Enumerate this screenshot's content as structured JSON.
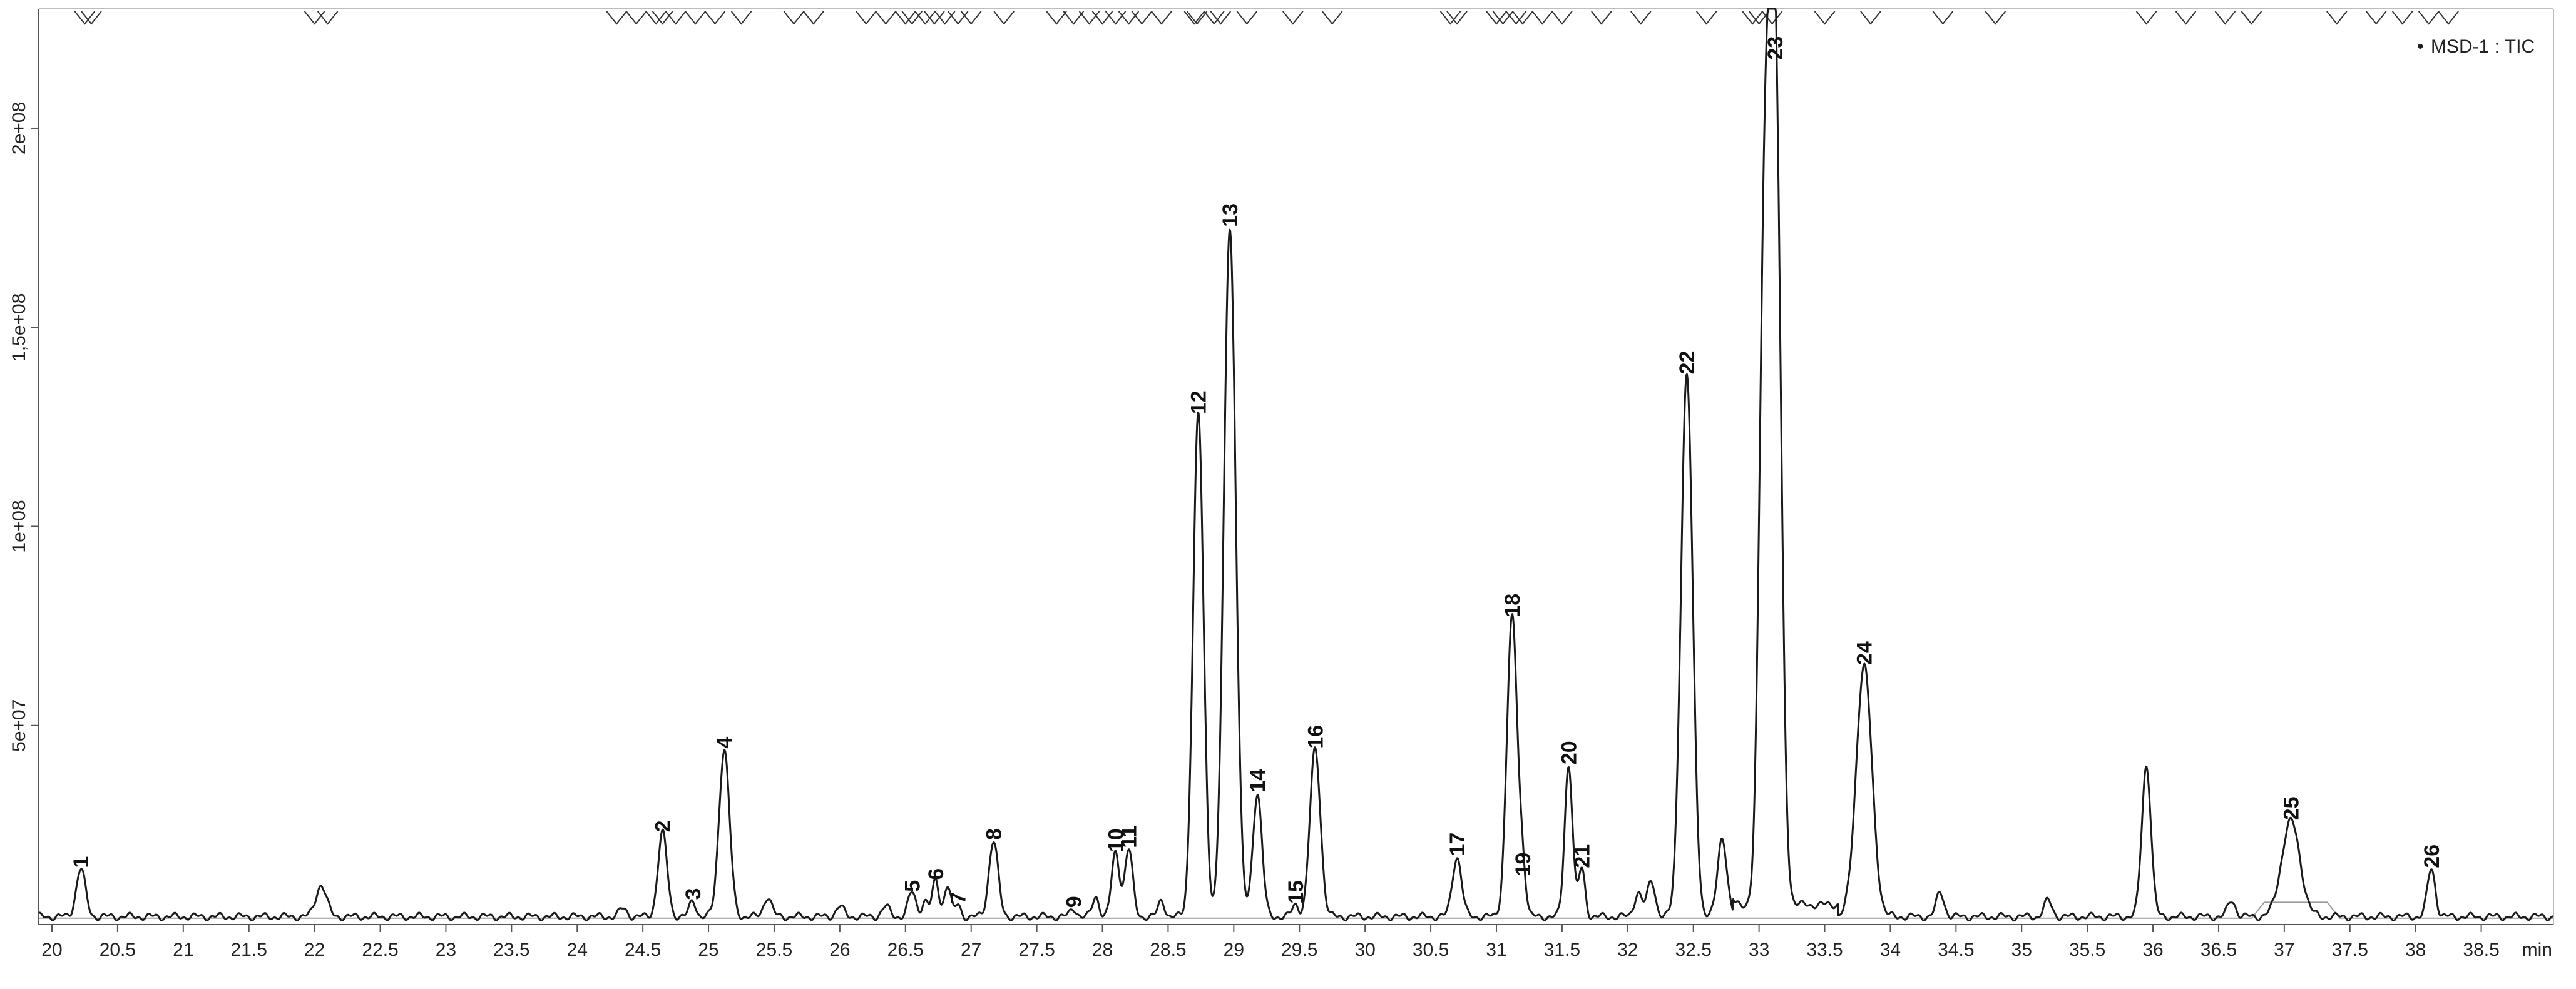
{
  "chart_data": {
    "type": "line",
    "title": "",
    "xlabel": "",
    "ylabel": "",
    "x_unit_label": "min",
    "xlim": [
      19.9,
      39.05
    ],
    "ylim": [
      0,
      230000000
    ],
    "x_ticks": [
      "20",
      "20.5",
      "21",
      "21.5",
      "22",
      "22.5",
      "23",
      "23.5",
      "24",
      "24.5",
      "25",
      "25.5",
      "26",
      "26.5",
      "27",
      "27.5",
      "28",
      "28.5",
      "29",
      "29.5",
      "30",
      "30.5",
      "31",
      "31.5",
      "32",
      "32.5",
      "33",
      "33.5",
      "34",
      "34.5",
      "35",
      "35.5",
      "36",
      "36.5",
      "37",
      "37.5",
      "38",
      "38.5"
    ],
    "y_ticks": [
      {
        "value": 50000000,
        "label": "5e+07"
      },
      {
        "value": 100000000,
        "label": "1e+08"
      },
      {
        "value": 150000000,
        "label": "1,5e+08"
      },
      {
        "value": 200000000,
        "label": "2e+08"
      }
    ],
    "legend": {
      "label": "MSD-1 : TIC",
      "placement": "top-right",
      "marker": "•"
    },
    "grid": false,
    "colors": {
      "trace": "#1a1a1a",
      "baseline": "#9a9a9a",
      "axis": "#555555"
    },
    "baseline_value": 2000000,
    "peaks": [
      {
        "label": "1",
        "x": 20.22,
        "y": 12000000,
        "w": 0.035
      },
      {
        "label": "",
        "x": 22.05,
        "y": 8000000,
        "w": 0.04
      },
      {
        "label": "",
        "x": 24.35,
        "y": 2000000,
        "w": 0.03
      },
      {
        "label": "2",
        "x": 24.65,
        "y": 21000000,
        "w": 0.035
      },
      {
        "label": "3",
        "x": 24.88,
        "y": 4000000,
        "w": 0.025
      },
      {
        "label": "4",
        "x": 25.12,
        "y": 42000000,
        "w": 0.04
      },
      {
        "label": "",
        "x": 25.45,
        "y": 5000000,
        "w": 0.03
      },
      {
        "label": "",
        "x": 26.0,
        "y": 2500000,
        "w": 0.03
      },
      {
        "label": "",
        "x": 26.35,
        "y": 2500000,
        "w": 0.03
      },
      {
        "label": "5",
        "x": 26.55,
        "y": 6000000,
        "w": 0.03
      },
      {
        "label": "",
        "x": 26.65,
        "y": 4000000,
        "w": 0.025
      },
      {
        "label": "6",
        "x": 26.73,
        "y": 9000000,
        "w": 0.025
      },
      {
        "label": "",
        "x": 26.82,
        "y": 8000000,
        "w": 0.025
      },
      {
        "label": "7",
        "x": 26.9,
        "y": 3000000,
        "w": 0.02
      },
      {
        "label": "8",
        "x": 27.17,
        "y": 19000000,
        "w": 0.035
      },
      {
        "label": "9",
        "x": 27.78,
        "y": 2000000,
        "w": 0.025
      },
      {
        "label": "",
        "x": 27.95,
        "y": 5000000,
        "w": 0.025
      },
      {
        "label": "10",
        "x": 28.1,
        "y": 16000000,
        "w": 0.03
      },
      {
        "label": "11",
        "x": 28.2,
        "y": 17000000,
        "w": 0.03
      },
      {
        "label": "",
        "x": 28.45,
        "y": 4000000,
        "w": 0.025
      },
      {
        "label": "12",
        "x": 28.73,
        "y": 126000000,
        "w": 0.04
      },
      {
        "label": "13",
        "x": 28.97,
        "y": 173000000,
        "w": 0.045
      },
      {
        "label": "14",
        "x": 29.18,
        "y": 31000000,
        "w": 0.035
      },
      {
        "label": "15",
        "x": 29.47,
        "y": 3000000,
        "w": 0.025
      },
      {
        "label": "16",
        "x": 29.62,
        "y": 42000000,
        "w": 0.04
      },
      {
        "label": "17",
        "x": 30.7,
        "y": 15000000,
        "w": 0.035
      },
      {
        "label": "18",
        "x": 31.12,
        "y": 75000000,
        "w": 0.04
      },
      {
        "label": "19",
        "x": 31.2,
        "y": 10000000,
        "w": 0.025
      },
      {
        "label": "20",
        "x": 31.55,
        "y": 38000000,
        "w": 0.03
      },
      {
        "label": "21",
        "x": 31.65,
        "y": 12000000,
        "w": 0.025
      },
      {
        "label": "",
        "x": 32.08,
        "y": 6000000,
        "w": 0.03
      },
      {
        "label": "",
        "x": 32.18,
        "y": 9000000,
        "w": 0.03
      },
      {
        "label": "22",
        "x": 32.45,
        "y": 136000000,
        "w": 0.045
      },
      {
        "label": "",
        "x": 32.72,
        "y": 20000000,
        "w": 0.035
      },
      {
        "label": "",
        "x": 33.04,
        "y": 150000000,
        "w": 0.04
      },
      {
        "label": "23",
        "x": 33.12,
        "y": 215000000,
        "w": 0.045
      },
      {
        "label": "24",
        "x": 33.8,
        "y": 63000000,
        "w": 0.06
      },
      {
        "label": "",
        "x": 34.38,
        "y": 6000000,
        "w": 0.03
      },
      {
        "label": "",
        "x": 35.2,
        "y": 4000000,
        "w": 0.03
      },
      {
        "label": "",
        "x": 35.95,
        "y": 38000000,
        "w": 0.035
      },
      {
        "label": "",
        "x": 36.6,
        "y": 4000000,
        "w": 0.03
      },
      {
        "label": "25",
        "x": 37.05,
        "y": 24000000,
        "w": 0.07
      },
      {
        "label": "26",
        "x": 38.12,
        "y": 12000000,
        "w": 0.03
      }
    ],
    "event_markers_x": [
      20.25,
      20.3,
      22.0,
      22.1,
      24.3,
      24.45,
      24.6,
      24.65,
      24.75,
      24.9,
      25.05,
      25.25,
      25.65,
      25.8,
      26.2,
      26.35,
      26.5,
      26.55,
      26.65,
      26.72,
      26.8,
      26.9,
      27.0,
      27.25,
      27.65,
      27.78,
      27.9,
      28.0,
      28.1,
      28.2,
      28.3,
      28.45,
      28.7,
      28.72,
      28.85,
      28.9,
      29.1,
      29.45,
      29.75,
      30.65,
      30.7,
      31.0,
      31.05,
      31.15,
      31.2,
      31.35,
      31.5,
      31.8,
      32.1,
      32.6,
      32.95,
      33.0,
      33.1,
      33.5,
      33.85,
      34.4,
      34.8,
      35.95,
      36.25,
      36.55,
      36.75,
      37.4,
      37.7,
      37.9,
      38.1,
      38.25
    ]
  }
}
